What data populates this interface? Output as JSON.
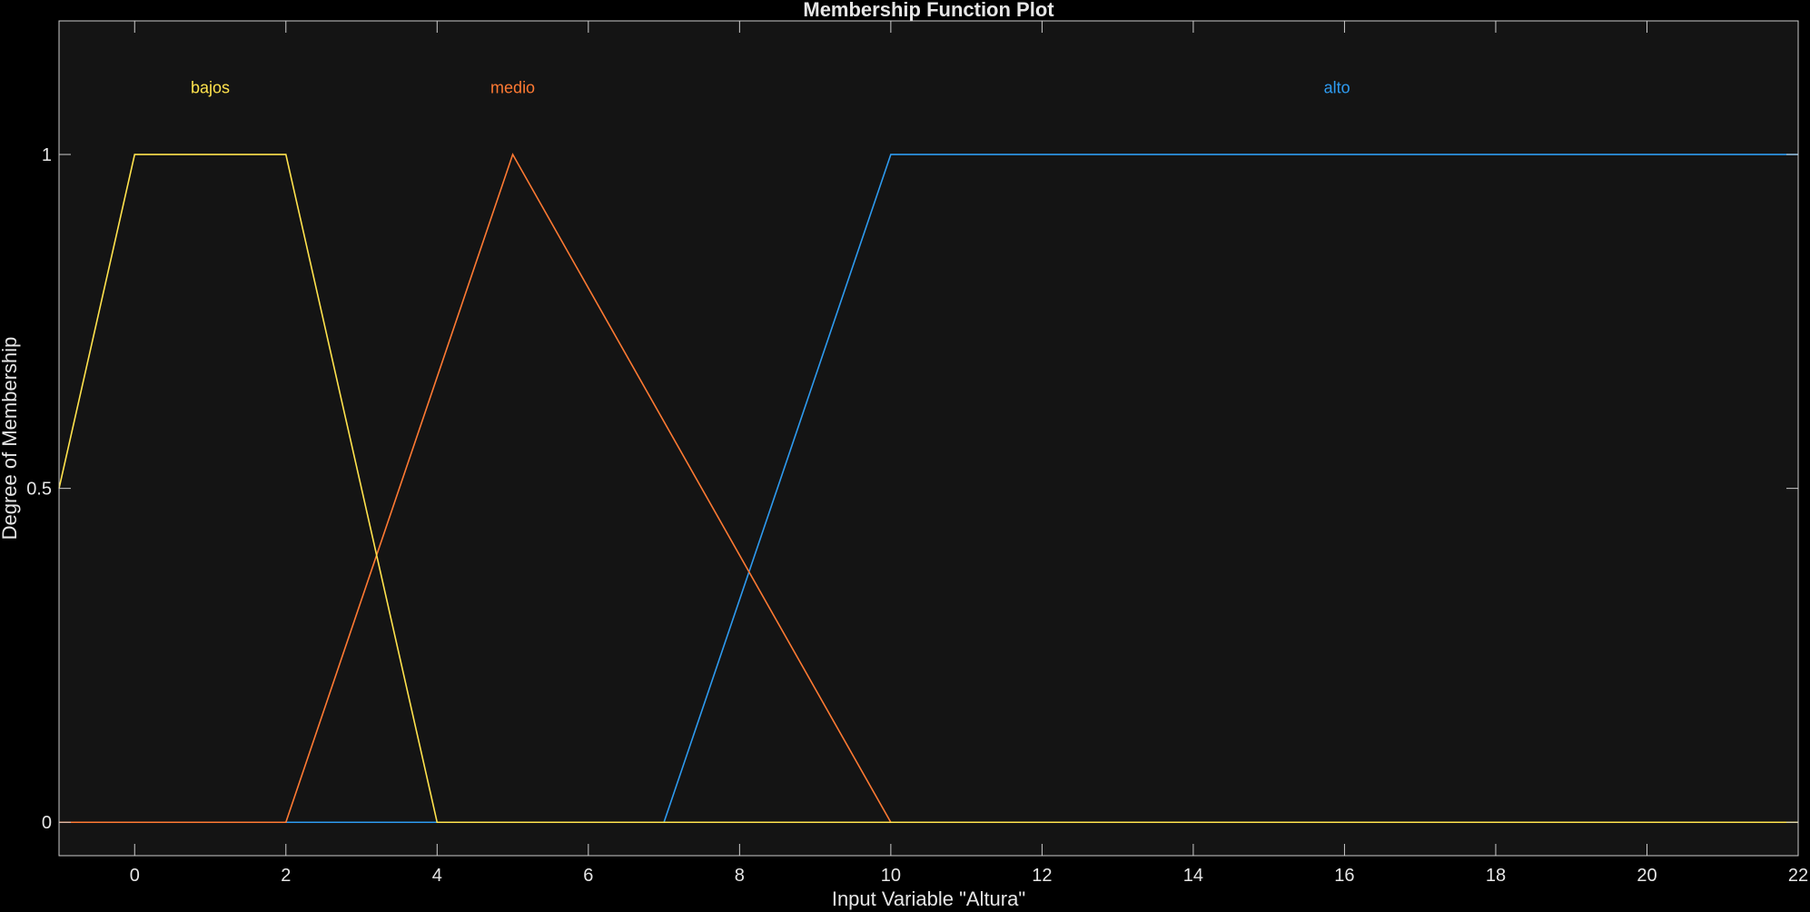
{
  "chart_data": {
    "type": "line",
    "title": "Membership Function Plot",
    "xlabel": "Input Variable \"Altura\"",
    "ylabel": "Degree of Membership",
    "xlim": [
      -1,
      22
    ],
    "ylim": [
      -0.05,
      1.2
    ],
    "xticks": [
      0,
      2,
      4,
      6,
      8,
      10,
      12,
      14,
      16,
      18,
      20,
      22
    ],
    "yticks": [
      0,
      0.5,
      1
    ],
    "ytick_labels": [
      "0",
      "0.5",
      "1"
    ],
    "grid": false,
    "colors": {
      "background": "#000000",
      "axes_background": "#141414",
      "axes_lines": "#cccccc",
      "text": "#e6e6e6"
    },
    "series": [
      {
        "name": "bajos",
        "shape": "trapmf",
        "params": [
          -2,
          0,
          2,
          4
        ],
        "color": "#ffe34d",
        "x": [
          -1,
          0,
          2,
          4,
          22
        ],
        "y": [
          0.5,
          1,
          1,
          0,
          0
        ],
        "label_x": 1,
        "label_y": 1.1
      },
      {
        "name": "medio",
        "shape": "trimf",
        "params": [
          2,
          5,
          10
        ],
        "color": "#ff7a33",
        "x": [
          -1,
          2,
          5,
          10,
          22
        ],
        "y": [
          0,
          0,
          1,
          0,
          0
        ],
        "label_x": 5,
        "label_y": 1.1
      },
      {
        "name": "alto",
        "shape": "trapmf",
        "params": [
          7,
          10,
          22,
          22
        ],
        "color": "#2e9bf0",
        "x": [
          -1,
          7,
          10,
          22
        ],
        "y": [
          0,
          0,
          1,
          1
        ],
        "label_x": 15.9,
        "label_y": 1.1
      }
    ]
  }
}
